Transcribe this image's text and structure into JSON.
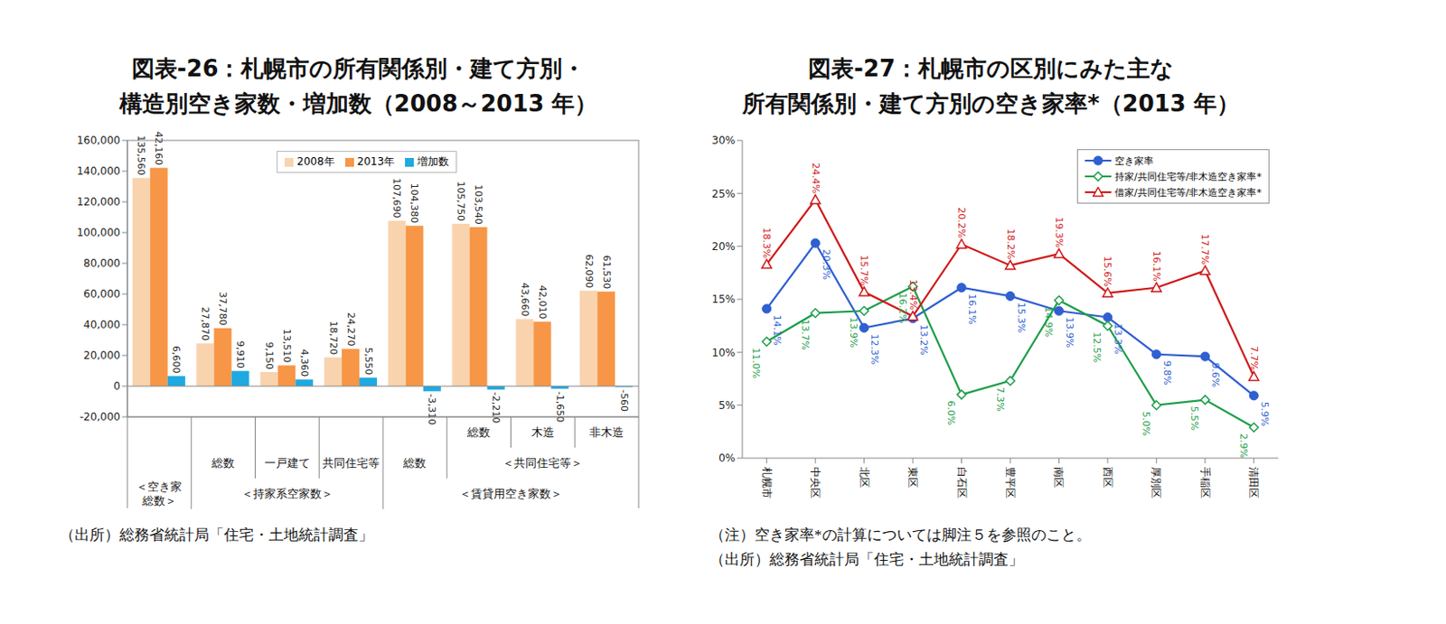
{
  "chart_data": [
    {
      "type": "bar",
      "title": "図表-26：札幌市の所有関係別・建て方別・\n構造別空き家数・増加数（2008～2013 年）",
      "source": "（出所）総務省統計局「住宅・土地統計調査」",
      "categories": [
        null,
        "総数",
        "一戸建て",
        "共同住宅等",
        "総数",
        "総数",
        "木造",
        "非木造"
      ],
      "category_groups": [
        {
          "label": "＜共同住宅等＞",
          "from": 5,
          "to": 7
        },
        {
          "label": "＜空き家総数＞",
          "from": 0,
          "to": 0
        },
        {
          "label": "＜持家系空家数＞",
          "from": 1,
          "to": 3
        },
        {
          "label": "＜賃貸用空き家数＞",
          "from": 4,
          "to": 7
        }
      ],
      "series": [
        {
          "name": "2008年",
          "color": "#F9D3AE",
          "values": [
            135560,
            27870,
            9150,
            18720,
            107690,
            105750,
            43660,
            62090
          ],
          "value_labels": [
            "135,560",
            "27,870",
            "9,150",
            "18,720",
            "107,690",
            "105,750",
            "43,660",
            "62,090"
          ]
        },
        {
          "name": "2013年",
          "color": "#F79646",
          "values": [
            142160,
            37780,
            13510,
            24270,
            104380,
            103540,
            42010,
            61530
          ],
          "value_labels": [
            "142,160",
            "37,780",
            "13,510",
            "24,270",
            "104,380",
            "103,540",
            "42,010",
            "61,530"
          ]
        },
        {
          "name": "増加数",
          "color": "#1FA9E1",
          "values": [
            6600,
            9910,
            4360,
            5550,
            -3310,
            -2210,
            -1650,
            -560
          ],
          "value_labels": [
            "6,600",
            "9,910",
            "4,360",
            "5,550",
            "-3,310",
            "-2,210",
            "-1,650",
            "-560"
          ]
        }
      ],
      "ylim": [
        -20000,
        160000
      ],
      "yticks": [
        {
          "value": -20000,
          "label": "-20,000"
        },
        0,
        {
          "value": 20000,
          "label": "20,000"
        },
        {
          "value": 40000,
          "label": "40,000"
        },
        {
          "value": 60000,
          "label": "60,000"
        },
        {
          "value": 80000,
          "label": "80,000"
        },
        {
          "value": 100000,
          "label": "100,000"
        },
        {
          "value": 120000,
          "label": "120,000"
        },
        {
          "value": 140000,
          "label": "140,000"
        },
        {
          "value": 160000,
          "label": "160,000"
        }
      ],
      "grid": false,
      "legend": "top",
      "data_labels": true
    },
    {
      "type": "line",
      "title": "図表-27：札幌市の区別にみた主な\n所有関係別・建て方別の空き家率*（2013 年）",
      "note": "（注）空き家率*の計算については脚注５を参照のこと。",
      "source": "（出所）総務省統計局「住宅・土地統計調査」",
      "categories": [
        "札幌市",
        "中央区",
        "北区",
        "東区",
        "白石区",
        "豊平区",
        "南区",
        "西区",
        "厚別区",
        "手稲区",
        "清田区"
      ],
      "series": [
        {
          "name": "空き家率",
          "color": "#2F5FD0",
          "marker": "circle",
          "values": [
            14.1,
            20.3,
            12.3,
            13.2,
            16.1,
            15.3,
            13.9,
            13.3,
            9.8,
            9.6,
            5.9
          ],
          "value_labels": [
            "14.1%",
            "20.3%",
            "12.3%",
            "13.2%",
            "16.1%",
            "15.3%",
            "13.9%",
            "13.3%",
            "9.8%",
            "9.6%",
            "5.9%"
          ]
        },
        {
          "name": "持家/共同住宅等/非木造空き家率*",
          "color": "#1E9E4A",
          "marker": "diamond-open",
          "values": [
            11.0,
            13.7,
            13.9,
            16.2,
            6.0,
            7.3,
            14.9,
            12.5,
            5.0,
            5.5,
            2.9
          ],
          "value_labels": [
            "11.0%",
            "13.7%",
            "13.9%",
            "16.2%",
            "6.0%",
            "7.3%",
            "14.9%",
            "12.5%",
            "5.0%",
            "5.5%",
            "2.9%"
          ]
        },
        {
          "name": "借家/共同住宅等/非木造空き家率*",
          "color": "#D01818",
          "marker": "triangle-open",
          "values": [
            18.3,
            24.4,
            15.7,
            13.4,
            20.2,
            18.2,
            19.3,
            15.6,
            16.1,
            17.7,
            7.7
          ],
          "value_labels": [
            "18.3%",
            "24.4%",
            "15.7%",
            "13.4%",
            "20.2%",
            "18.2%",
            "19.3%",
            "15.6%",
            "16.1%",
            "17.7%",
            "7.7%"
          ]
        }
      ],
      "ylim": [
        0,
        30
      ],
      "yticks": [
        {
          "value": 0,
          "label": "0%"
        },
        {
          "value": 5,
          "label": "5%"
        },
        {
          "value": 10,
          "label": "10%"
        },
        {
          "value": 15,
          "label": "15%"
        },
        {
          "value": 20,
          "label": "20%"
        },
        {
          "value": 25,
          "label": "25%"
        },
        {
          "value": 30,
          "label": "30%"
        }
      ],
      "grid": false,
      "legend": "top-right",
      "data_labels": true
    }
  ]
}
